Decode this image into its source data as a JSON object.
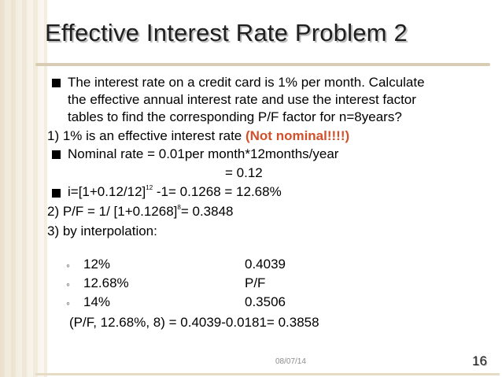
{
  "title": "Effective Interest Rate Problem 2",
  "intro": {
    "line1": "The interest rate on a credit card is 1% per month. Calculate",
    "line2": "the effective annual interest rate and use the interest factor",
    "line3": "tables to find the corresponding P/F factor for n=8years?"
  },
  "step1": {
    "text": "1)  1% is an effective interest rate ",
    "emphasis": "(Not nominal!!!!)"
  },
  "nominal": {
    "line1": "Nominal rate = 0.01per month*12months/year",
    "line2": "= 0.12"
  },
  "effective": {
    "pre": "i=[1+0.12/12]",
    "exp": "12",
    "post": " -1= 0.1268 = 12.68%"
  },
  "step2": {
    "pre": "2) P/F = 1/ [1+0.1268]",
    "exp": "8",
    "post": "= 0.3848"
  },
  "step3": {
    "label": "3) by interpolation:",
    "rows": [
      {
        "rate": "12%",
        "value": "0.4039"
      },
      {
        "rate": "12.68%",
        "value": "P/F"
      },
      {
        "rate": "14%",
        "value": "0.3506"
      }
    ],
    "result": "(P/F, 12.68%, 8) = 0.4039-0.0181= 0.3858"
  },
  "footer": {
    "date": "08/07/14",
    "page": "16"
  }
}
